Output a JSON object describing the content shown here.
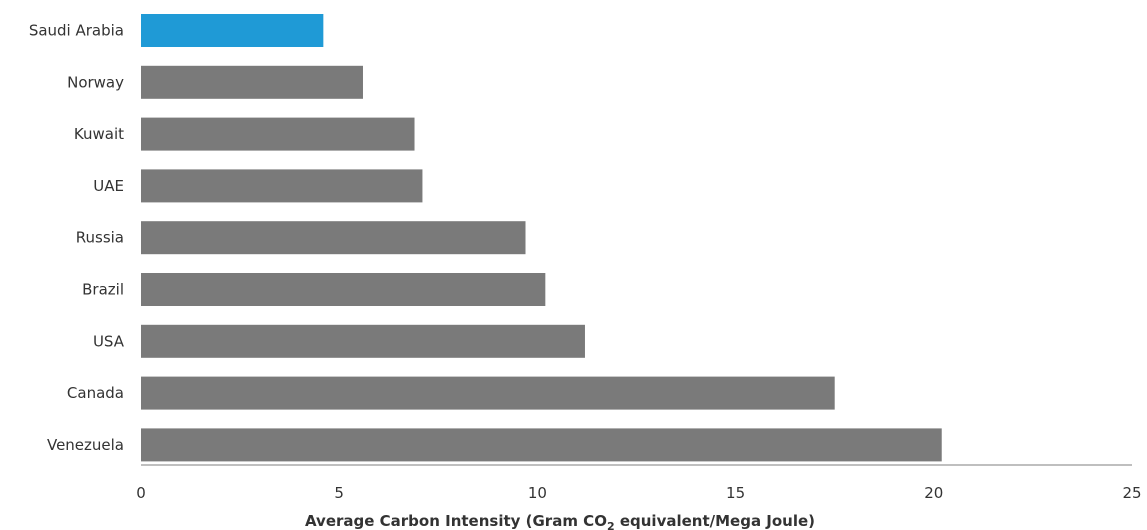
{
  "chart_data": {
    "type": "bar",
    "orientation": "horizontal",
    "categories": [
      "Saudi Arabia",
      "Norway",
      "Kuwait",
      "UAE",
      "Russia",
      "Brazil",
      "USA",
      "Canada",
      "Venezuela"
    ],
    "values": [
      4.6,
      5.6,
      6.9,
      7.1,
      9.7,
      10.2,
      11.2,
      17.5,
      20.2
    ],
    "highlight_category": "Saudi Arabia",
    "xlim": [
      0,
      25
    ],
    "xticks": [
      0,
      5,
      10,
      15,
      20,
      25
    ],
    "xlabel": {
      "before": "Average Carbon Intensity (Gram CO",
      "subscript": "2",
      "after": " equivalent/Mega Joule)"
    },
    "ylabel": "",
    "title": "",
    "grid": false,
    "colors": {
      "bar": "#7a7a7a",
      "highlight": "#1f9ad6",
      "axis": "#aaaaaa",
      "text": "#333333"
    }
  }
}
